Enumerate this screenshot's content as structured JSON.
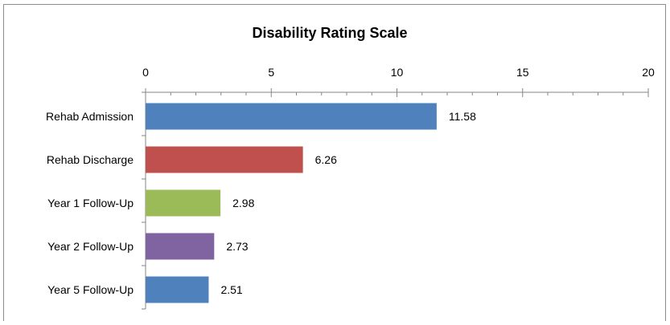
{
  "chart_data": {
    "type": "bar",
    "orientation": "horizontal",
    "title": "Disability Rating Scale",
    "xlabel": "",
    "ylabel": "",
    "categories": [
      "Rehab Admission",
      "Rehab Discharge",
      "Year 1 Follow-Up",
      "Year 2 Follow-Up",
      "Year 5 Follow-Up"
    ],
    "values": [
      11.58,
      6.26,
      2.98,
      2.73,
      2.51
    ],
    "data_labels": [
      "11.58",
      "6.26",
      "2.98",
      "2.73",
      "2.51"
    ],
    "bar_colors": [
      "#4f81bd",
      "#c0504d",
      "#9bbb59",
      "#8064a2",
      "#4f81bd"
    ],
    "xlim": [
      0,
      20
    ],
    "x_ticks": [
      0,
      5,
      10,
      15,
      20
    ],
    "x_tick_labels": [
      "0",
      "5",
      "10",
      "15",
      "20"
    ],
    "x_axis_position": "top",
    "grid": false,
    "legend": "none"
  }
}
